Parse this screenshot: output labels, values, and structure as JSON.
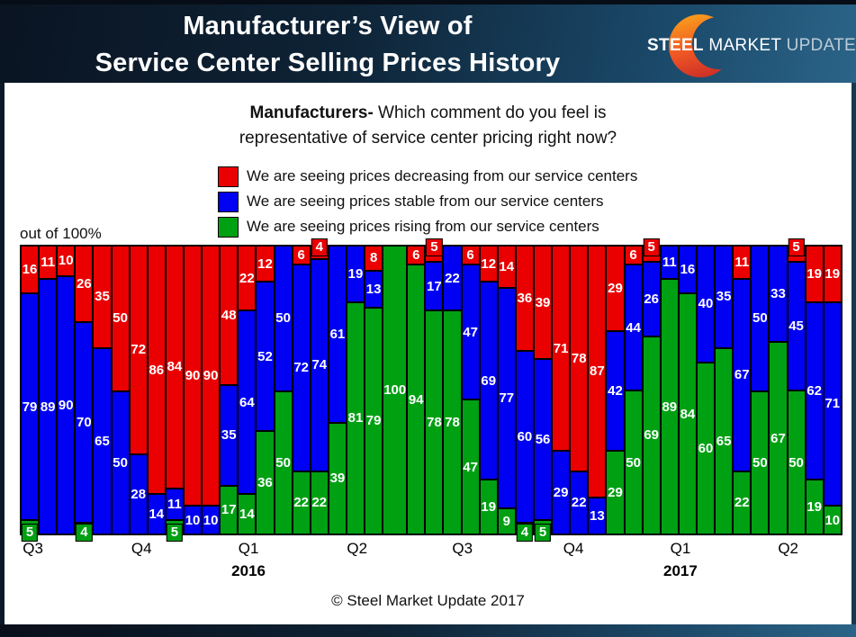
{
  "header": {
    "title_line1": "Manufacturer’s View of",
    "title_line2": "Service Center Selling Prices History",
    "logo": {
      "steel": "STEEL",
      "market": "MARKET",
      "update": "UPDATE"
    }
  },
  "subtitle": {
    "bold": "Manufacturers-",
    "line1_rest": " Which comment do you feel is",
    "line2": "representative of service center pricing right now?"
  },
  "legend": {
    "items": [
      {
        "label": "We are seeing prices decreasing from our service centers",
        "color": "#ea0000"
      },
      {
        "label": "We are seeing prices stable from our service centers",
        "color": "#0000f2"
      },
      {
        "label": "We are seeing prices rising from our service centers",
        "color": "#00a013"
      }
    ]
  },
  "axis_note": "out of 100%",
  "footer": "© Steel Market Update 2017",
  "chart_data": {
    "type": "bar",
    "stacked": true,
    "ylim": [
      0,
      100
    ],
    "grid": false,
    "legend_position": "top",
    "series": [
      {
        "name": "We are seeing prices decreasing from our service centers",
        "color": "#ea0000",
        "values": [
          16,
          11,
          10,
          26,
          35,
          50,
          72,
          86,
          84,
          90,
          90,
          48,
          22,
          12,
          0,
          6,
          4,
          0,
          0,
          8,
          0,
          6,
          5,
          0,
          6,
          12,
          14,
          36,
          39,
          71,
          78,
          87,
          29,
          6,
          5,
          0,
          0,
          0,
          0,
          11,
          0,
          0,
          5,
          19,
          19
        ]
      },
      {
        "name": "We are seeing prices stable from our service centers",
        "color": "#0000f2",
        "values": [
          79,
          89,
          90,
          70,
          65,
          50,
          28,
          14,
          11,
          10,
          10,
          35,
          64,
          52,
          50,
          72,
          74,
          61,
          19,
          13,
          0,
          0,
          17,
          22,
          47,
          69,
          77,
          60,
          56,
          29,
          22,
          13,
          42,
          44,
          26,
          11,
          16,
          40,
          35,
          67,
          50,
          33,
          45,
          62,
          71
        ]
      },
      {
        "name": "We are seeing prices rising from our service centers",
        "color": "#00a013",
        "values": [
          5,
          0,
          0,
          4,
          0,
          0,
          0,
          0,
          5,
          0,
          0,
          17,
          14,
          36,
          50,
          22,
          22,
          39,
          81,
          79,
          100,
          94,
          78,
          78,
          47,
          19,
          9,
          4,
          5,
          0,
          0,
          0,
          29,
          50,
          69,
          89,
          84,
          60,
          65,
          22,
          50,
          67,
          50,
          19,
          10
        ]
      }
    ],
    "x_axis": {
      "labels": [
        {
          "label": "Q3",
          "year": "",
          "pos": 1.6
        },
        {
          "label": "Q4",
          "year": "",
          "pos": 14.8
        },
        {
          "label": "Q1",
          "year": "2016",
          "pos": 27.8
        },
        {
          "label": "Q2",
          "year": "",
          "pos": 41.0
        },
        {
          "label": "Q3",
          "year": "",
          "pos": 53.8
        },
        {
          "label": "Q4",
          "year": "",
          "pos": 67.3
        },
        {
          "label": "Q1",
          "year": "2017",
          "pos": 80.3
        },
        {
          "label": "Q2",
          "year": "",
          "pos": 93.4
        }
      ]
    }
  }
}
